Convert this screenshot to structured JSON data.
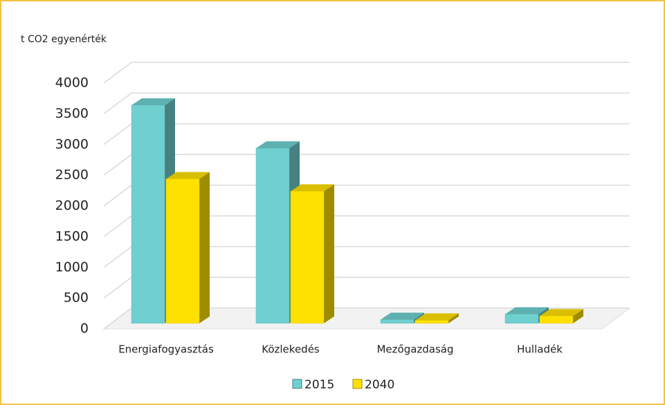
{
  "chart_data": {
    "type": "bar3d",
    "y_label": "t CO2 egyenérték",
    "categories": [
      "Energiafogyasztás",
      "Közlekedés",
      "Mezőgazdaság",
      "Hulladék"
    ],
    "series": [
      {
        "name": "2015",
        "color": "#6fd0cf",
        "values": [
          3550,
          2850,
          60,
          150
        ]
      },
      {
        "name": "2040",
        "color": "#ffe100",
        "values": [
          2350,
          2150,
          50,
          120
        ]
      }
    ],
    "ylim": [
      0,
      4000
    ],
    "yticks": [
      0,
      500,
      1000,
      1500,
      2000,
      2500,
      3000,
      3500,
      4000
    ],
    "grid": true,
    "legend": "bottom"
  }
}
